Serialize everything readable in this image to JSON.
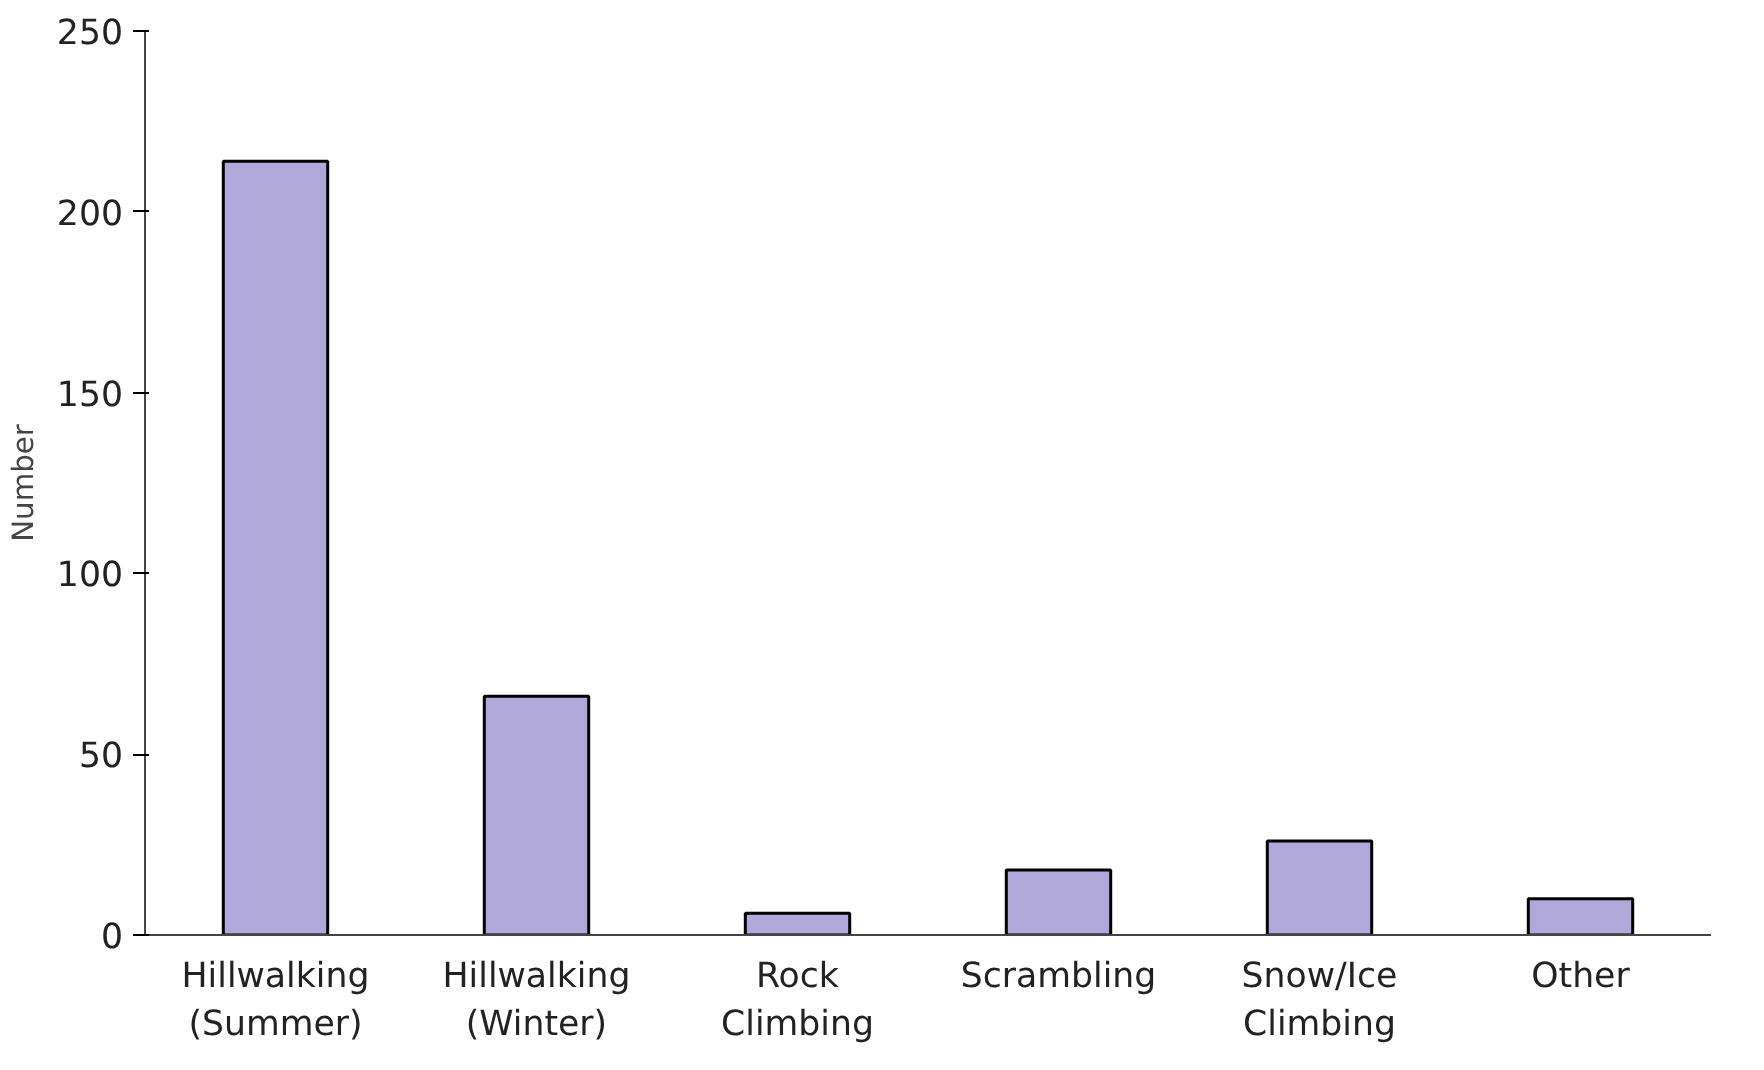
{
  "chart_data": {
    "type": "bar",
    "ylabel": "Number",
    "categories": [
      "Hillwalking\n(Summer)",
      "Hillwalking\n(Winter)",
      "Rock\nClimbing",
      "Scrambling",
      "Snow/Ice\nClimbing",
      "Other"
    ],
    "values": [
      214,
      66,
      6,
      18,
      26,
      10
    ],
    "color": "#b0a8d8",
    "ylim": [
      0,
      250
    ],
    "yticks": [
      0,
      50,
      100,
      150,
      200,
      250
    ],
    "grid": false
  }
}
